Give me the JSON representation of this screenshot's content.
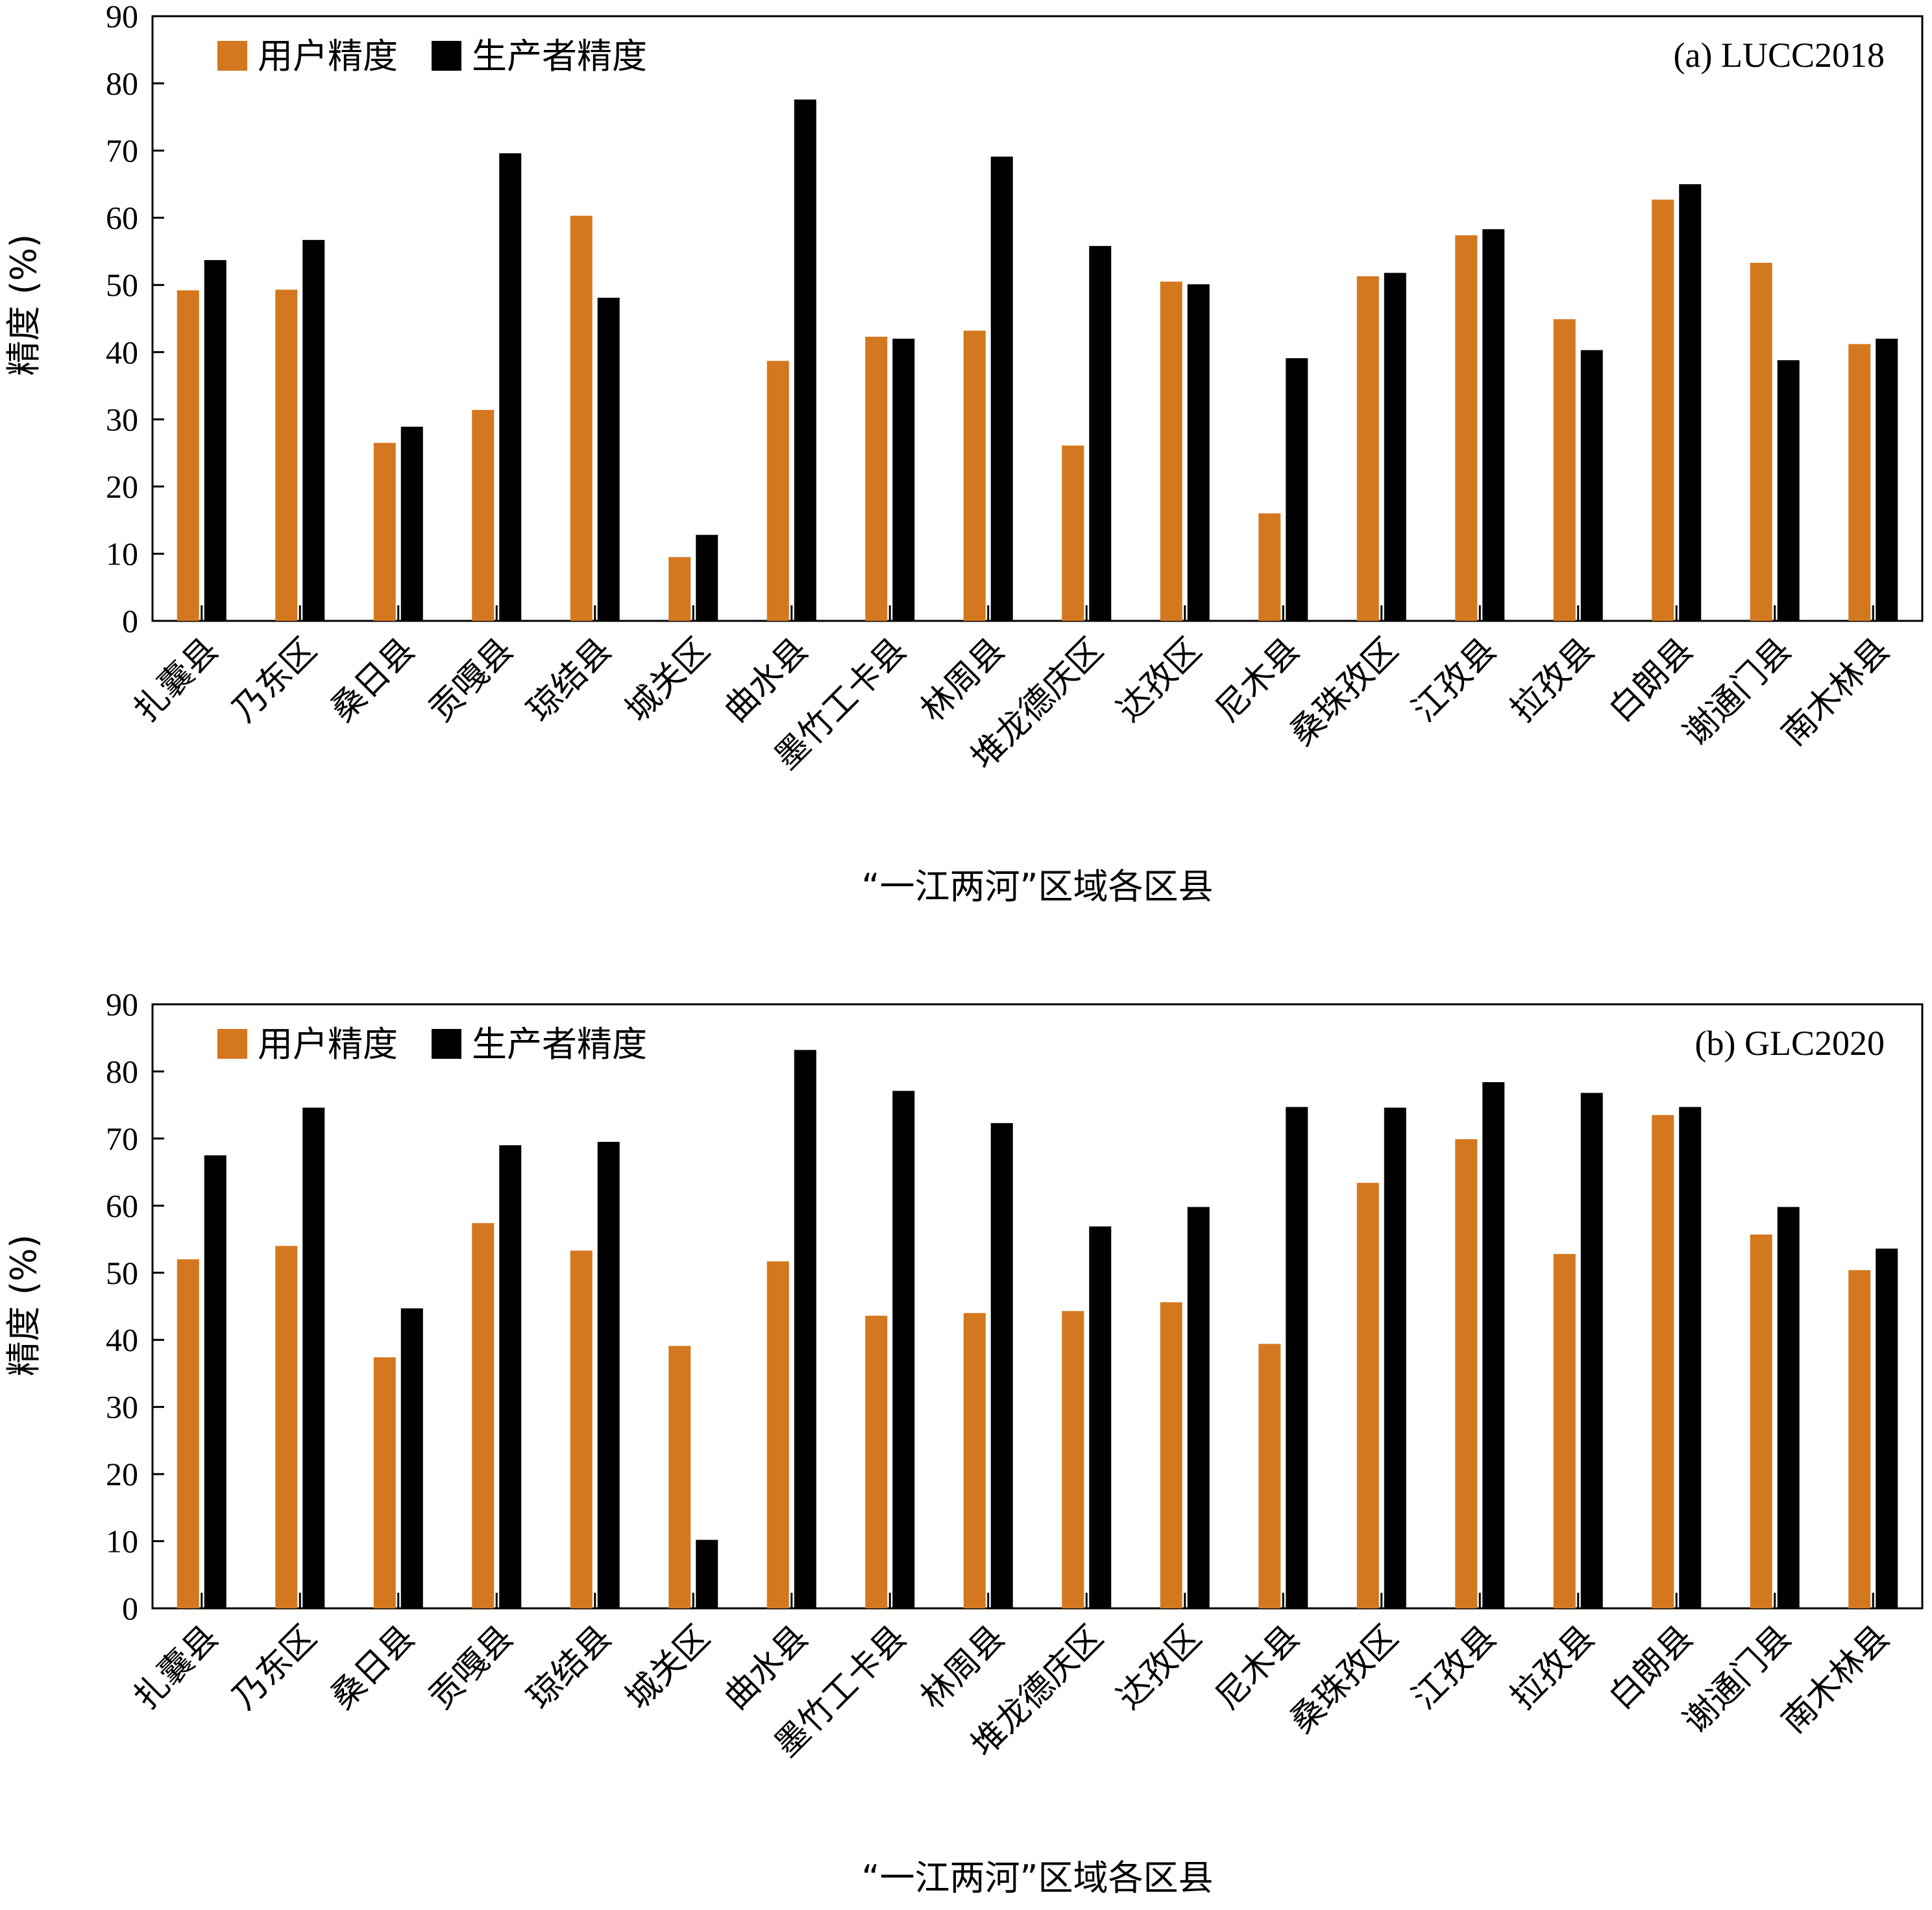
{
  "colors": {
    "user": "#d4781f",
    "producer": "#000000"
  },
  "chart_data": [
    {
      "type": "bar",
      "panel_label": "(a) LUCC2018",
      "ylabel": "精度 (%)",
      "xlabel": "“一江两河”区域各区县",
      "ylim": [
        0,
        90
      ],
      "yticks": [
        0,
        10,
        20,
        30,
        40,
        50,
        60,
        70,
        80,
        90
      ],
      "legend": "top-left",
      "grid": false,
      "categories": [
        "扎囊县",
        "乃东区",
        "桑日县",
        "贡嘎县",
        "琼结县",
        "城关区",
        "曲水县",
        "墨竹工卡县",
        "林周县",
        "堆龙德庆区",
        "达孜区",
        "尼木县",
        "桑珠孜区",
        "江孜县",
        "拉孜县",
        "白朗县",
        "谢通门县",
        "南木林县"
      ],
      "series": [
        {
          "name": "用户精度",
          "values": [
            49.2,
            49.3,
            26.5,
            31.4,
            60.3,
            9.5,
            38.7,
            42.3,
            43.2,
            26.1,
            50.5,
            16.0,
            51.3,
            57.4,
            44.9,
            62.7,
            53.3,
            41.2
          ]
        },
        {
          "name": "生产者精度",
          "values": [
            53.7,
            56.7,
            28.9,
            69.6,
            48.1,
            12.8,
            77.6,
            42.0,
            69.1,
            55.8,
            50.1,
            39.1,
            51.8,
            58.3,
            40.3,
            65.0,
            38.8,
            42.0
          ]
        }
      ]
    },
    {
      "type": "bar",
      "panel_label": "(b) GLC2020",
      "ylabel": "精度 (%)",
      "xlabel": "“一江两河”区域各区县",
      "ylim": [
        0,
        90
      ],
      "yticks": [
        0,
        10,
        20,
        30,
        40,
        50,
        60,
        70,
        80,
        90
      ],
      "legend": "top-left",
      "grid": false,
      "categories": [
        "扎囊县",
        "乃东区",
        "桑日县",
        "贡嘎县",
        "琼结县",
        "城关区",
        "曲水县",
        "墨竹工卡县",
        "林周县",
        "堆龙德庆区",
        "达孜区",
        "尼木县",
        "桑珠孜区",
        "江孜县",
        "拉孜县",
        "白朗县",
        "谢通门县",
        "南木林县"
      ],
      "series": [
        {
          "name": "用户精度",
          "values": [
            52.0,
            54.0,
            37.4,
            57.4,
            53.3,
            39.1,
            51.7,
            43.6,
            44.0,
            44.3,
            45.6,
            39.4,
            63.4,
            69.9,
            52.8,
            73.5,
            55.7,
            50.4
          ]
        },
        {
          "name": "生产者精度",
          "values": [
            67.5,
            74.6,
            44.7,
            69.0,
            69.5,
            10.2,
            83.2,
            77.1,
            72.3,
            56.9,
            59.8,
            74.7,
            74.6,
            78.4,
            76.8,
            74.7,
            59.8,
            53.6
          ]
        }
      ]
    }
  ]
}
